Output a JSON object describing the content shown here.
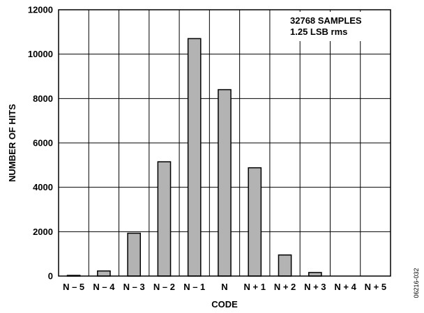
{
  "chart_data": {
    "type": "bar",
    "categories": [
      "N – 5",
      "N – 4",
      "N – 3",
      "N – 2",
      "N – 1",
      "N",
      "N + 1",
      "N + 2",
      "N + 3",
      "N + 4",
      "N + 5"
    ],
    "values": [
      30,
      230,
      1930,
      5150,
      10700,
      8400,
      4880,
      950,
      160,
      0,
      0
    ],
    "xlabel": "CODE",
    "ylabel": "NUMBER OF HITS",
    "ylim": [
      0,
      12000
    ],
    "yticks": [
      "0",
      "2000",
      "4000",
      "6000",
      "8000",
      "10000",
      "12000"
    ],
    "grid": true,
    "bar_color": "#b3b3b3",
    "annotations": [
      "32768 SAMPLES",
      "1.25 LSB rms"
    ],
    "figure_id": "06216-032"
  }
}
